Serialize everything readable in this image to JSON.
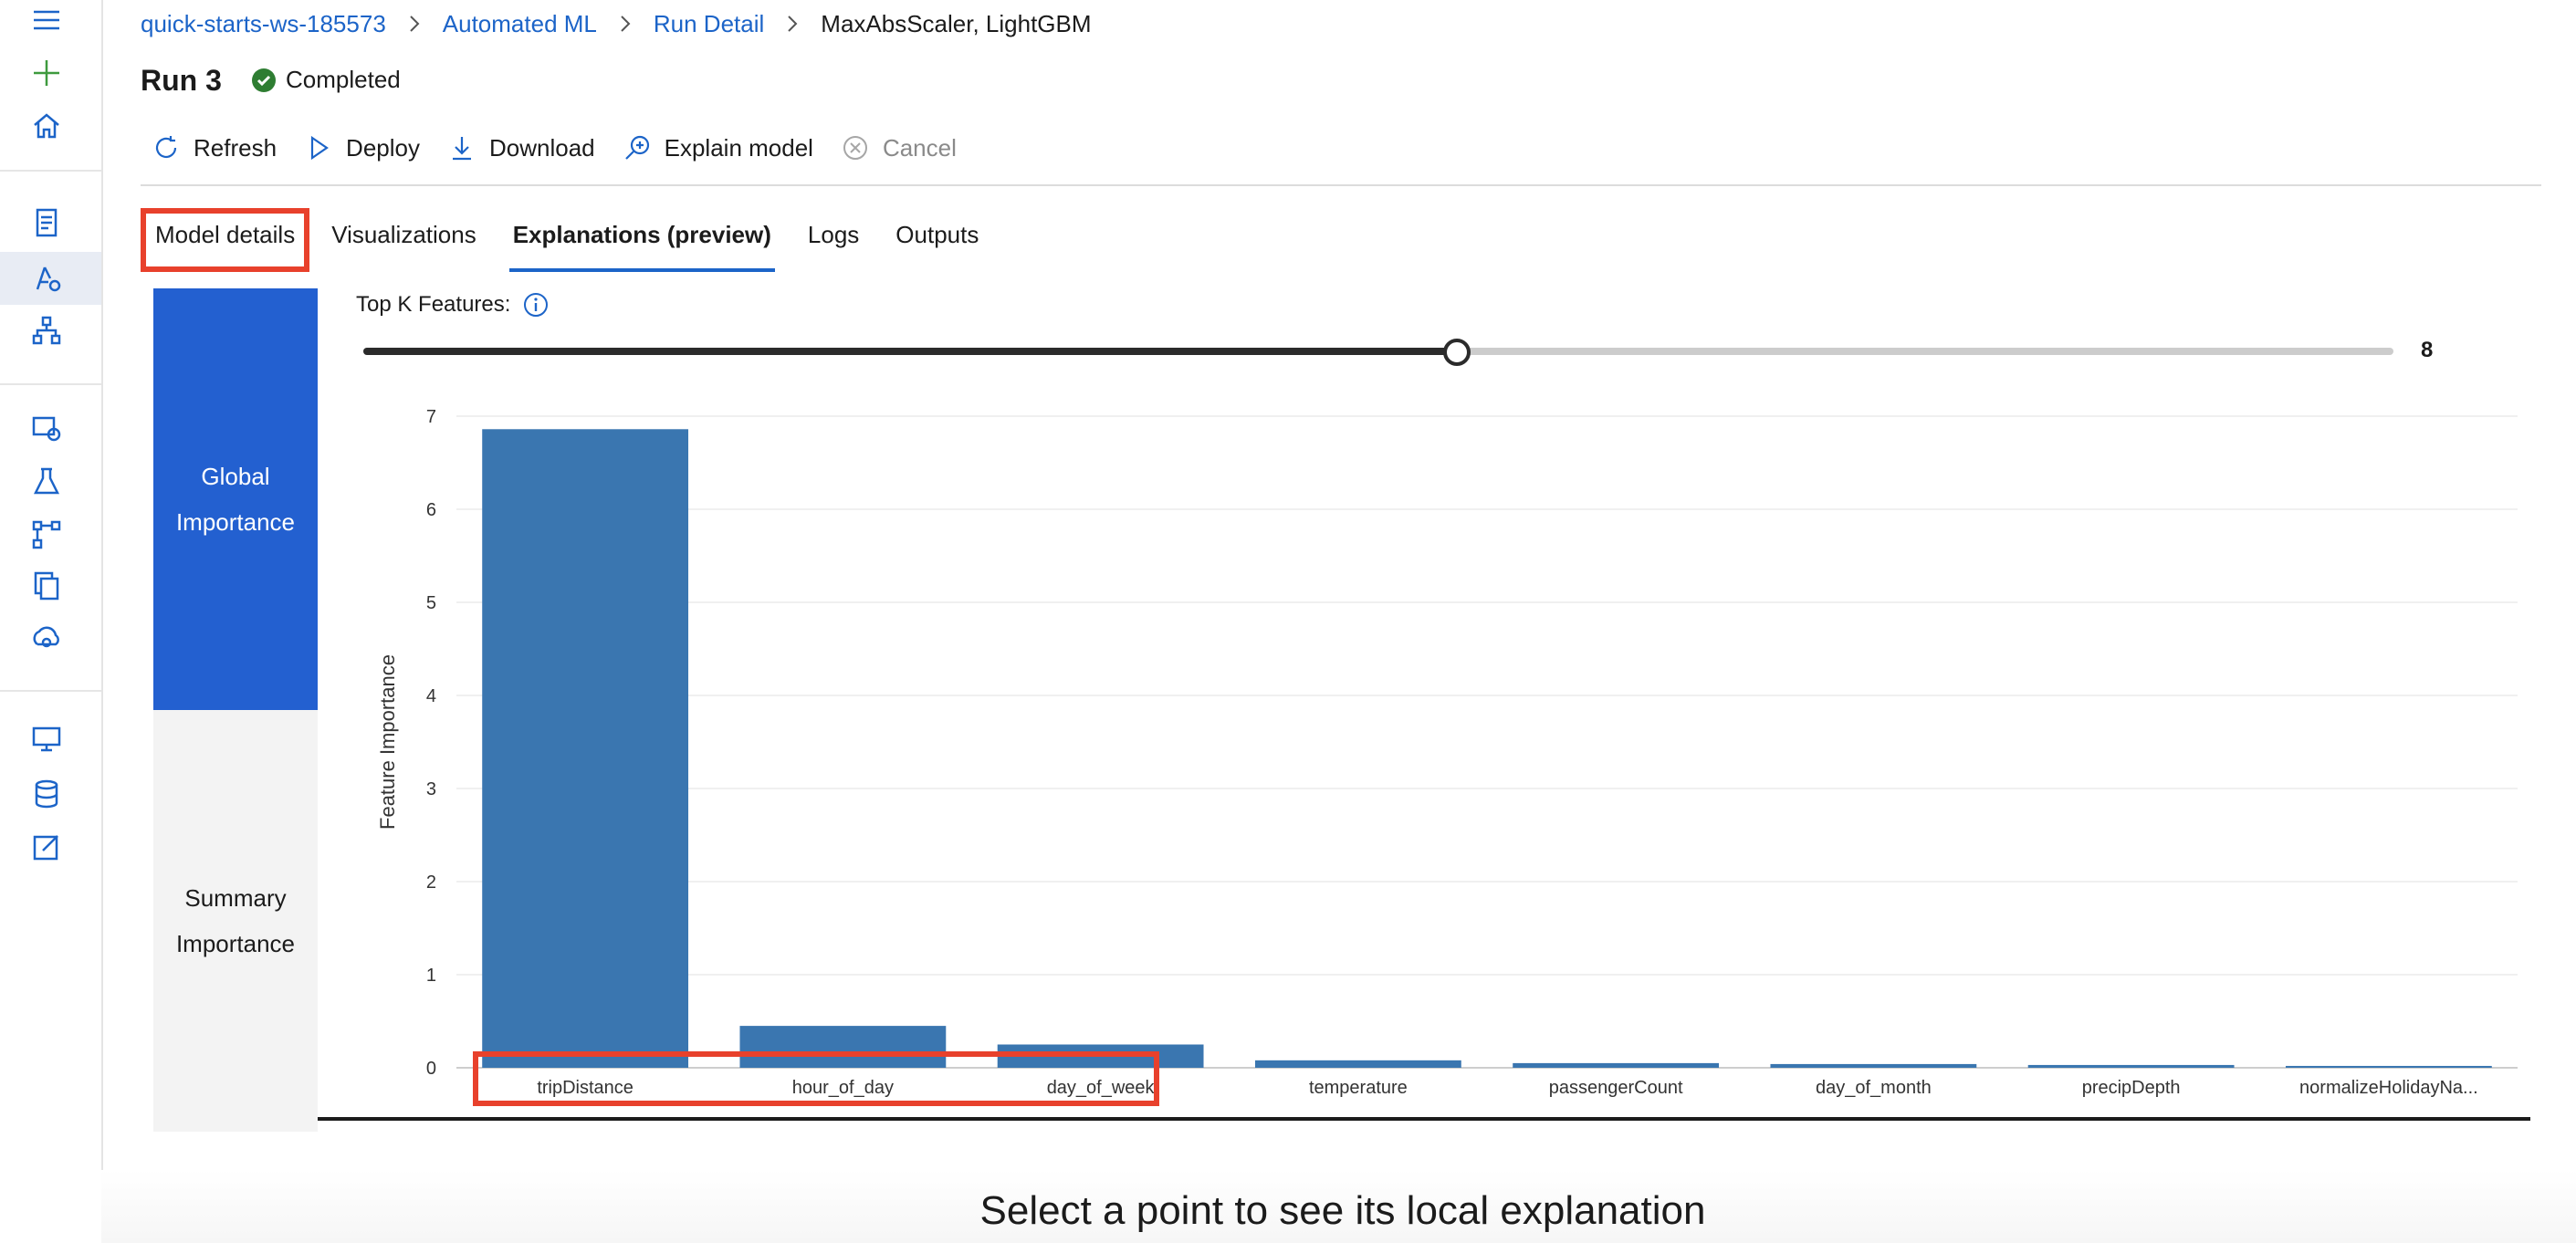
{
  "breadcrumb": {
    "workspace": "quick-starts-ws-185573",
    "automl": "Automated ML",
    "run_detail": "Run Detail",
    "current": "MaxAbsScaler, LightGBM"
  },
  "run": {
    "title": "Run 3",
    "status": "Completed",
    "status_color": "#2e7d32"
  },
  "toolbar": {
    "refresh": "Refresh",
    "deploy": "Deploy",
    "download": "Download",
    "explain": "Explain model",
    "cancel": "Cancel"
  },
  "tabs": [
    {
      "label": "Model details"
    },
    {
      "label": "Visualizations"
    },
    {
      "label": "Explanations (preview)"
    },
    {
      "label": "Logs"
    },
    {
      "label": "Outputs"
    }
  ],
  "importance_tabs": {
    "global": "Global Importance",
    "summary": "Summary Importance"
  },
  "top_k": {
    "label": "Top K Features:",
    "value": 8,
    "min": 1,
    "max": 14
  },
  "chart_data": {
    "type": "bar",
    "ylabel": "Feature Importance",
    "ylim": [
      0,
      7
    ],
    "yticks": [
      0,
      1,
      2,
      3,
      4,
      5,
      6,
      7
    ],
    "categories": [
      "tripDistance",
      "hour_of_day",
      "day_of_week",
      "temperature",
      "passengerCount",
      "day_of_month",
      "precipDepth",
      "normalizeHolidayNa..."
    ],
    "values": [
      6.86,
      0.45,
      0.25,
      0.08,
      0.05,
      0.04,
      0.03,
      0.02
    ],
    "bar_color": "#3a76b0",
    "grid": true
  },
  "local_explanation": {
    "message": "Select a point to see its local explanation"
  },
  "colors": {
    "accent": "#1c64c8",
    "highlight": "#e8412c",
    "active_tab_bg": "#2360d0"
  }
}
